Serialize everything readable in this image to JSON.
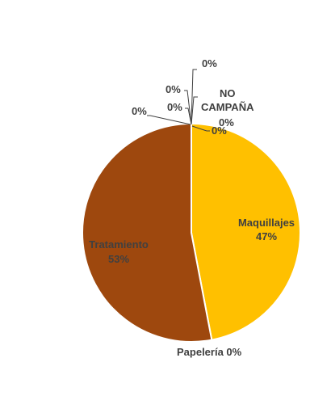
{
  "chart_data": {
    "type": "pie",
    "slices": [
      {
        "name": "Maquillajes",
        "value": 47,
        "label": "47%",
        "color": "#FFC000"
      },
      {
        "name": "Papelería",
        "value": 0,
        "label": "0%",
        "color": "#C55A11"
      },
      {
        "name": "Tratamiento",
        "value": 53,
        "label": "53%",
        "color": "#9E480E"
      },
      {
        "name": "",
        "value": 0,
        "label": "0%",
        "color": "#7F7F7F"
      },
      {
        "name": "",
        "value": 0,
        "label": "0%",
        "color": "#A5A5A5"
      },
      {
        "name": "",
        "value": 0,
        "label": "0%",
        "color": "#BFBFBF"
      },
      {
        "name": "",
        "value": 0,
        "label": "0%",
        "color": "#D9D9D9"
      },
      {
        "name": "NO CAMPAÑA",
        "value": 0,
        "label": "0%",
        "color": "#F2F2F2"
      }
    ],
    "label_text_colors": {
      "outside": "#404040",
      "maquillajes": "#404040",
      "tratamiento": "#404040"
    }
  },
  "labels": {
    "maquillajes_name": "Maquillajes",
    "maquillajes_pct": "47%",
    "tratamiento_name": "Tratamiento",
    "tratamiento_pct": "53%",
    "papeleria": "Papelería 0%",
    "no_campana_line1": "NO",
    "no_campana_line2": "CAMPAÑA",
    "no_campana_pct": "0%",
    "zero_a": "0%",
    "zero_b": "0%",
    "zero_c": "0%",
    "zero_d": "0%",
    "zero_e": "0%"
  }
}
